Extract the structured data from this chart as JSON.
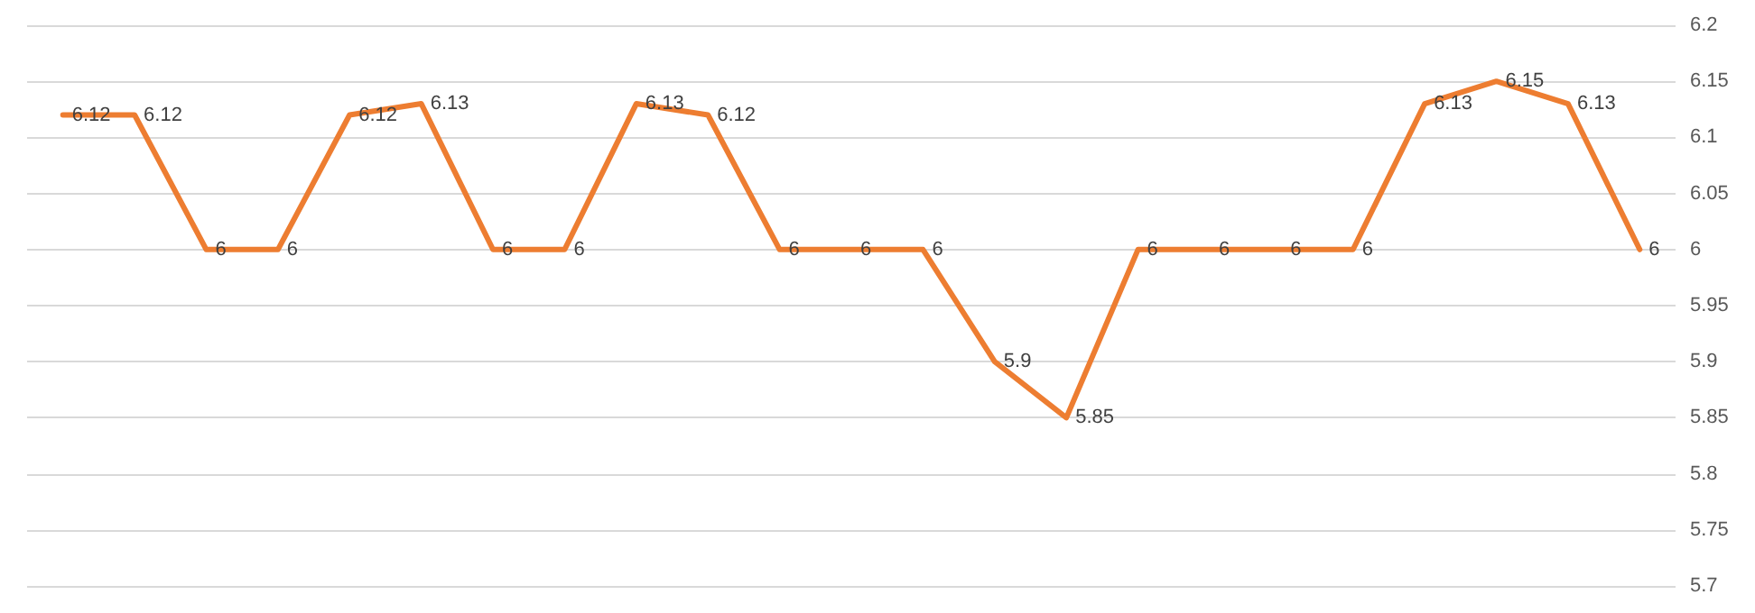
{
  "chart_data": {
    "type": "line",
    "categories": [
      null,
      null,
      null,
      null,
      null,
      null,
      null,
      null,
      null,
      null,
      null,
      null,
      null,
      null,
      null,
      null,
      null,
      null,
      null,
      null,
      null,
      null,
      null
    ],
    "series": [
      {
        "color": "#ed7d31",
        "values": [
          6.12,
          6.12,
          6,
          6,
          6.12,
          6.13,
          6,
          6,
          6.13,
          6.12,
          6,
          6,
          6,
          5.9,
          5.85,
          6,
          6,
          6,
          6,
          6.13,
          6.15,
          6.13,
          6
        ]
      }
    ],
    "ylim": [
      5.7,
      6.2
    ],
    "yticks": [
      5.7,
      5.75,
      5.8,
      5.85,
      5.9,
      5.95,
      6,
      6.05,
      6.1,
      6.15,
      6.2
    ],
    "grid": "y",
    "marker": "none",
    "line_style": "solid",
    "data_labels": true,
    "tick_labels": "y"
  }
}
